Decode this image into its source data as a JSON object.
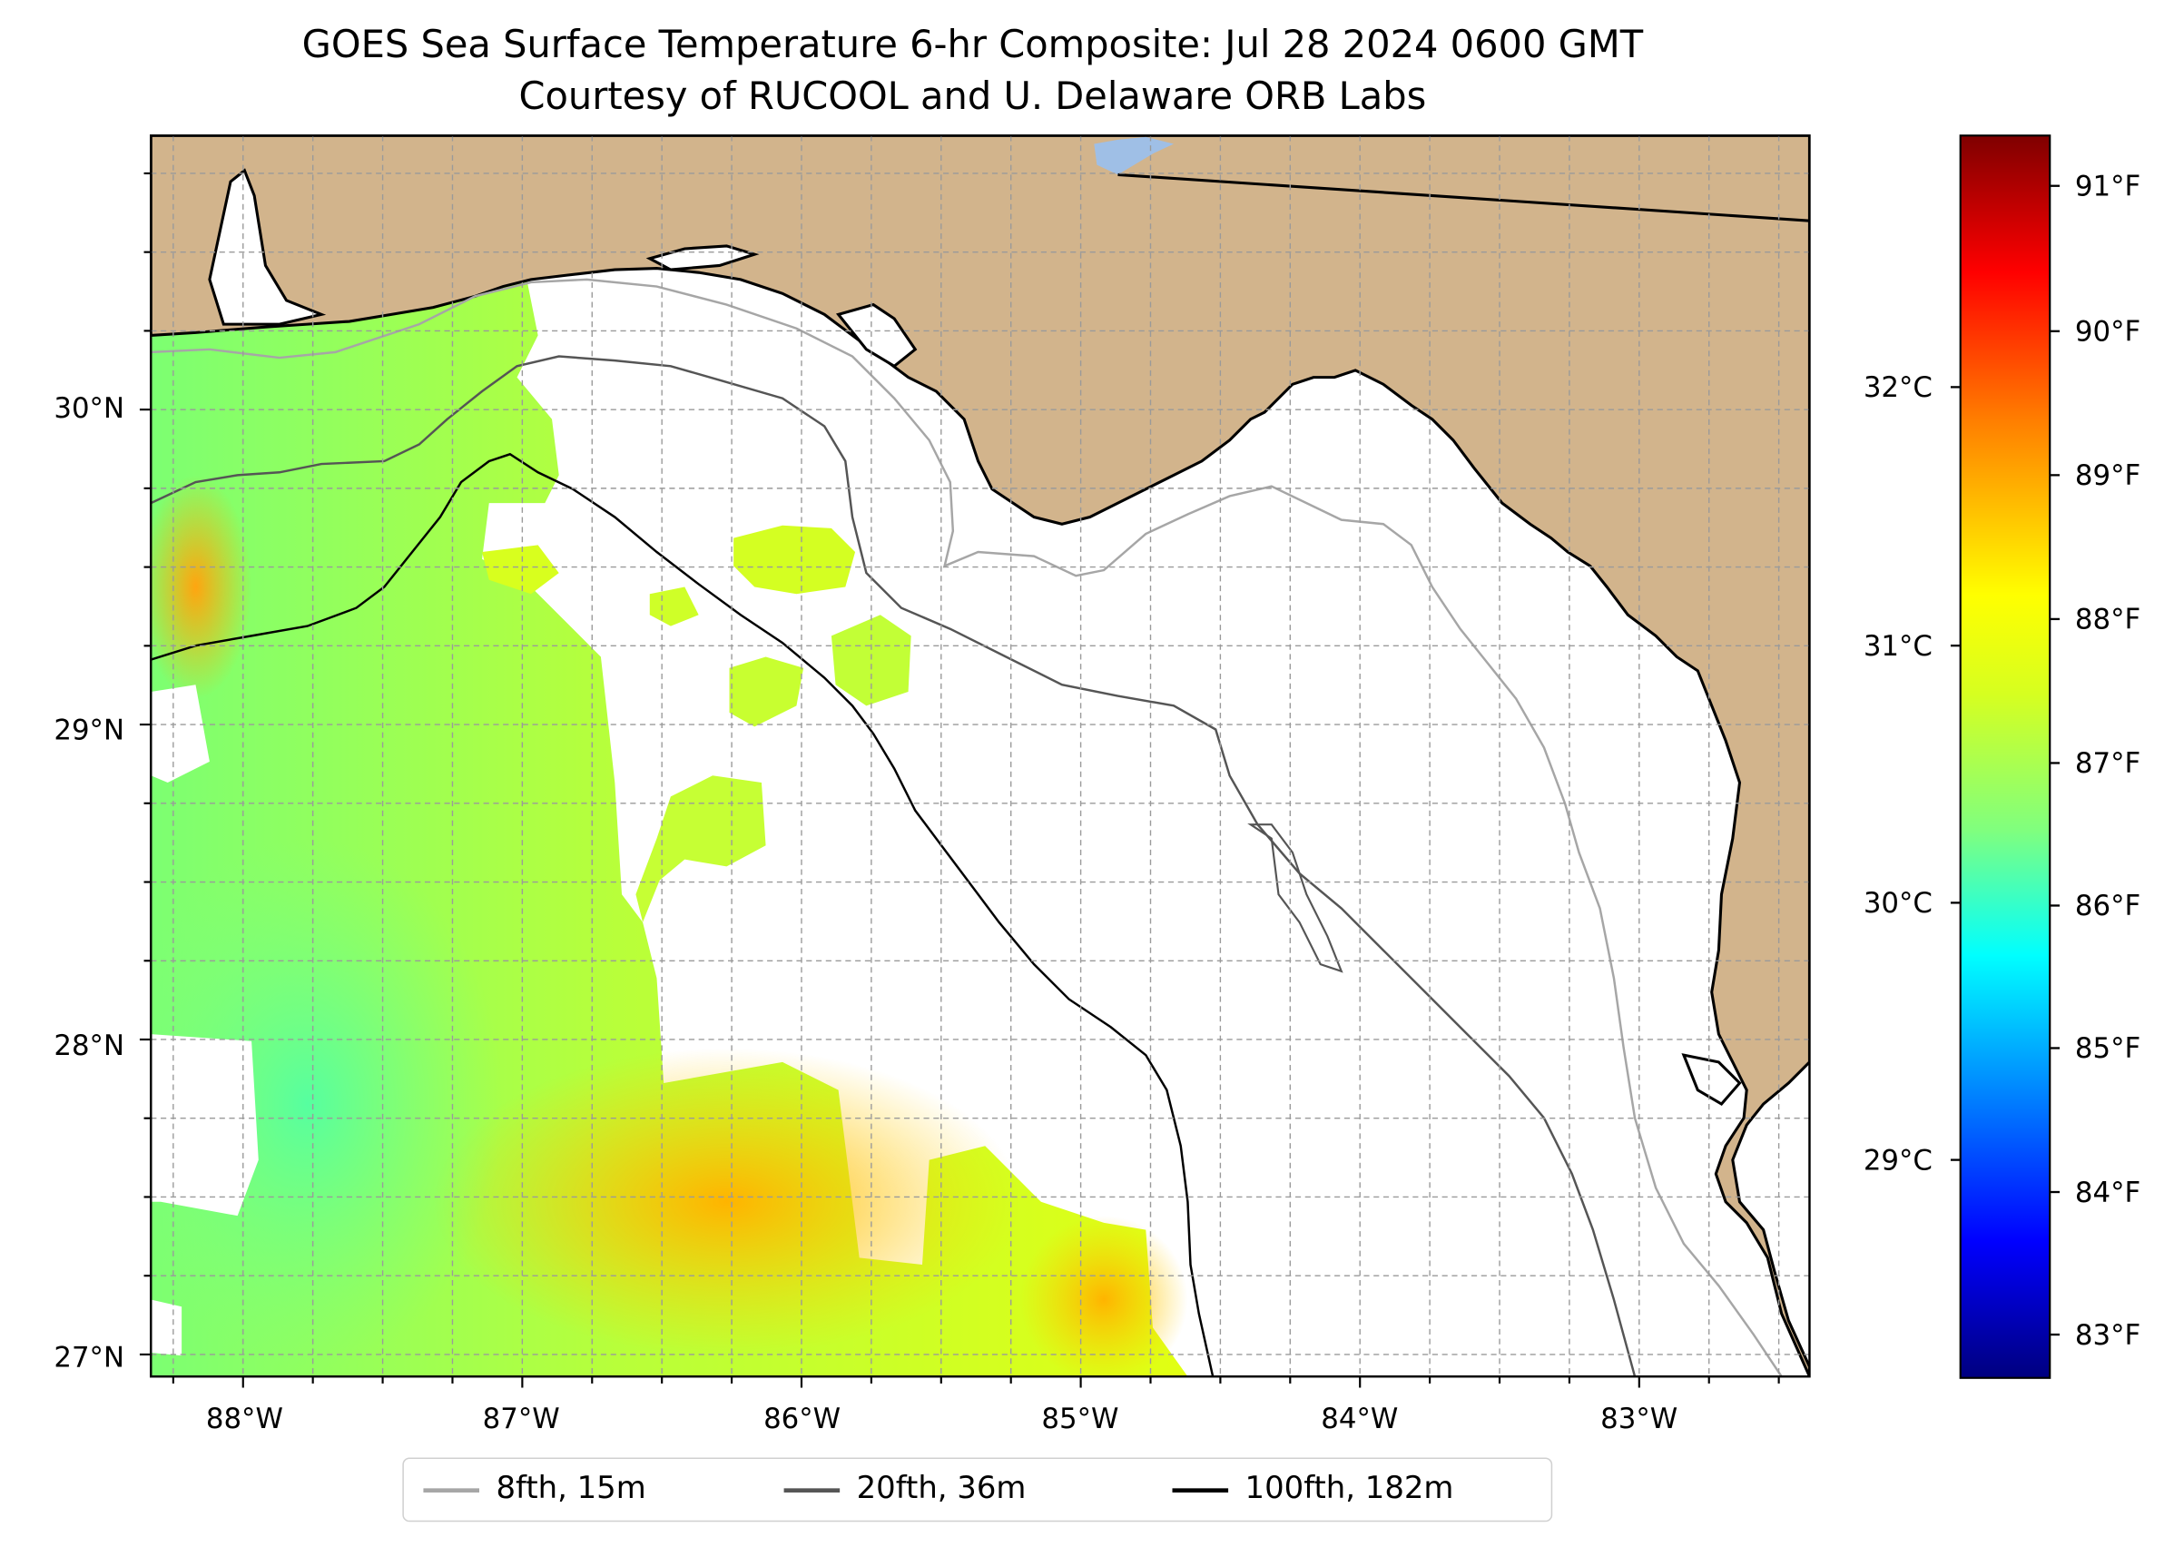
{
  "title": {
    "line1": "GOES Sea Surface Temperature 6-hr Composite: Jul 28 2024 0600 GMT",
    "line2": "Courtesy of RUCOOL and U. Delaware ORB Labs"
  },
  "map": {
    "extent_lon": [
      -88.33,
      -82.39
    ],
    "extent_lat": [
      26.93,
      30.87
    ],
    "land_color": "#d2b48c",
    "lake_color": "#9fbfe6",
    "no_data_color": "#ffffff",
    "gridlines": "dashed light grey every 0.25 degree",
    "lat_ticks": [
      "30°N",
      "29°N",
      "28°N",
      "27°N"
    ],
    "lon_ticks": [
      "88°W",
      "87°W",
      "86°W",
      "85°W",
      "84°W",
      "83°W"
    ],
    "sst_colormap": "jet",
    "sst_range_f": [
      82.3,
      91.4
    ],
    "sst_regions": [
      {
        "area": "west of 86.5°W near the Alabama/Mississippi coast",
        "approx_f": 87.3
      },
      {
        "area": "western edge near 29.5°N",
        "approx_f": 89.0
      },
      {
        "area": "offshore south of 28°N between 86.5°W and 85.5°W",
        "approx_f": 88.8
      },
      {
        "area": "patch near 27.3°N 84.9°W",
        "approx_f": 89.0
      },
      {
        "area": "southwest corner near 27.8°N 88°W",
        "approx_f": 86.9
      }
    ]
  },
  "colorbar": {
    "f_ticks": [
      "91°F",
      "90°F",
      "89°F",
      "88°F",
      "87°F",
      "86°F",
      "85°F",
      "84°F",
      "83°F"
    ],
    "c_ticks": [
      "32°C",
      "31°C",
      "30°C",
      "29°C"
    ],
    "colors": [
      "#00007f",
      "#0000ff",
      "#007fff",
      "#00ffff",
      "#7fff7f",
      "#ffff00",
      "#ff7f00",
      "#ff0000",
      "#7f0000"
    ]
  },
  "legend": {
    "items": [
      {
        "label": "8fth, 15m",
        "color": "#a6a6a6"
      },
      {
        "label": "20fth, 36m",
        "color": "#555555"
      },
      {
        "label": "100fth, 182m",
        "color": "#000000"
      }
    ]
  }
}
